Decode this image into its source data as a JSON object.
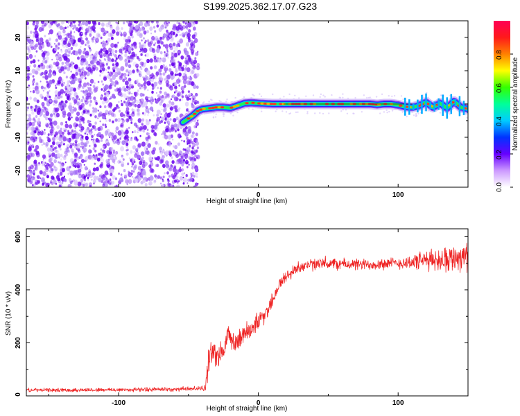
{
  "title": "S199.2025.362.17.07.G23",
  "chart_data": [
    {
      "type": "heatmap",
      "name": "spectrogram",
      "xlabel": "Height of straight line (km)",
      "ylabel": "Frequency (Hz)",
      "xlim": [
        -166,
        150
      ],
      "ylim": [
        -25,
        25
      ],
      "xticks": [
        -100,
        0,
        100
      ],
      "yticks": [
        -20,
        -10,
        0,
        10,
        20
      ],
      "noise_region_x": [
        -166,
        -43
      ],
      "signal_line": {
        "x": [
          -54,
          -47,
          -43,
          -40,
          -35,
          -30,
          -25,
          -20,
          -15,
          -10,
          -5,
          0,
          10,
          20,
          30,
          40,
          50,
          60,
          70,
          80,
          85,
          90,
          95,
          100,
          105,
          110,
          115,
          120,
          125,
          130,
          135,
          140,
          145,
          150
        ],
        "freq": [
          -5.5,
          -3.5,
          -2.0,
          -1.5,
          -1.3,
          -1.0,
          -1.0,
          -1.2,
          -0.5,
          0.2,
          0.4,
          0.2,
          0.0,
          0.0,
          0.0,
          0.0,
          0.0,
          0.0,
          0.0,
          0.0,
          -0.2,
          0.0,
          0.0,
          -0.3,
          -0.8,
          -1.0,
          -0.5,
          0.5,
          -1.0,
          0.2,
          -1.2,
          0.8,
          -1.0,
          -1.5
        ]
      },
      "colorbar": {
        "label": "Normalized spectral amplitude",
        "range": [
          0.0,
          1.0
        ],
        "ticks": [
          "0.0",
          "0.2",
          "0.4",
          "0.6",
          "0.8"
        ],
        "tick_values": [
          0.0,
          0.2,
          0.4,
          0.6,
          0.8
        ],
        "colormap": [
          "#ff0055",
          "#ff1a1a",
          "#ff8000",
          "#ffff00",
          "#33ff00",
          "#00ff99",
          "#00ccff",
          "#0033ff",
          "#6600ff",
          "#cc99ff",
          "#ffffff"
        ]
      },
      "grid": false
    },
    {
      "type": "line",
      "name": "snr",
      "xlabel": "Height of straight line (km)",
      "ylabel": "SNR (10 * v/v)",
      "xlim": [
        -166,
        150
      ],
      "ylim": [
        0,
        630
      ],
      "xticks": [
        -100,
        0,
        100
      ],
      "yticks": [
        0,
        200,
        400,
        600
      ],
      "color": "#ee2222",
      "trend": {
        "x": [
          -166,
          -140,
          -100,
          -60,
          -45,
          -38,
          -35,
          -32,
          -30,
          -25,
          -20,
          -15,
          -10,
          -5,
          0,
          5,
          10,
          15,
          20,
          25,
          30,
          40,
          50,
          60,
          70,
          80,
          90,
          100,
          110,
          120,
          130,
          140,
          150
        ],
        "y": [
          22,
          22,
          23,
          25,
          28,
          30,
          150,
          180,
          140,
          170,
          230,
          200,
          240,
          255,
          280,
          310,
          360,
          420,
          450,
          470,
          490,
          495,
          498,
          497,
          495,
          495,
          500,
          500,
          505,
          510,
          515,
          520,
          530
        ]
      },
      "noise_amplitude": {
        "x": [
          -166,
          -40,
          -36,
          -20,
          0,
          25,
          100,
          120,
          150
        ],
        "y": [
          8,
          10,
          55,
          55,
          40,
          28,
          25,
          45,
          70
        ]
      },
      "grid": false
    }
  ]
}
